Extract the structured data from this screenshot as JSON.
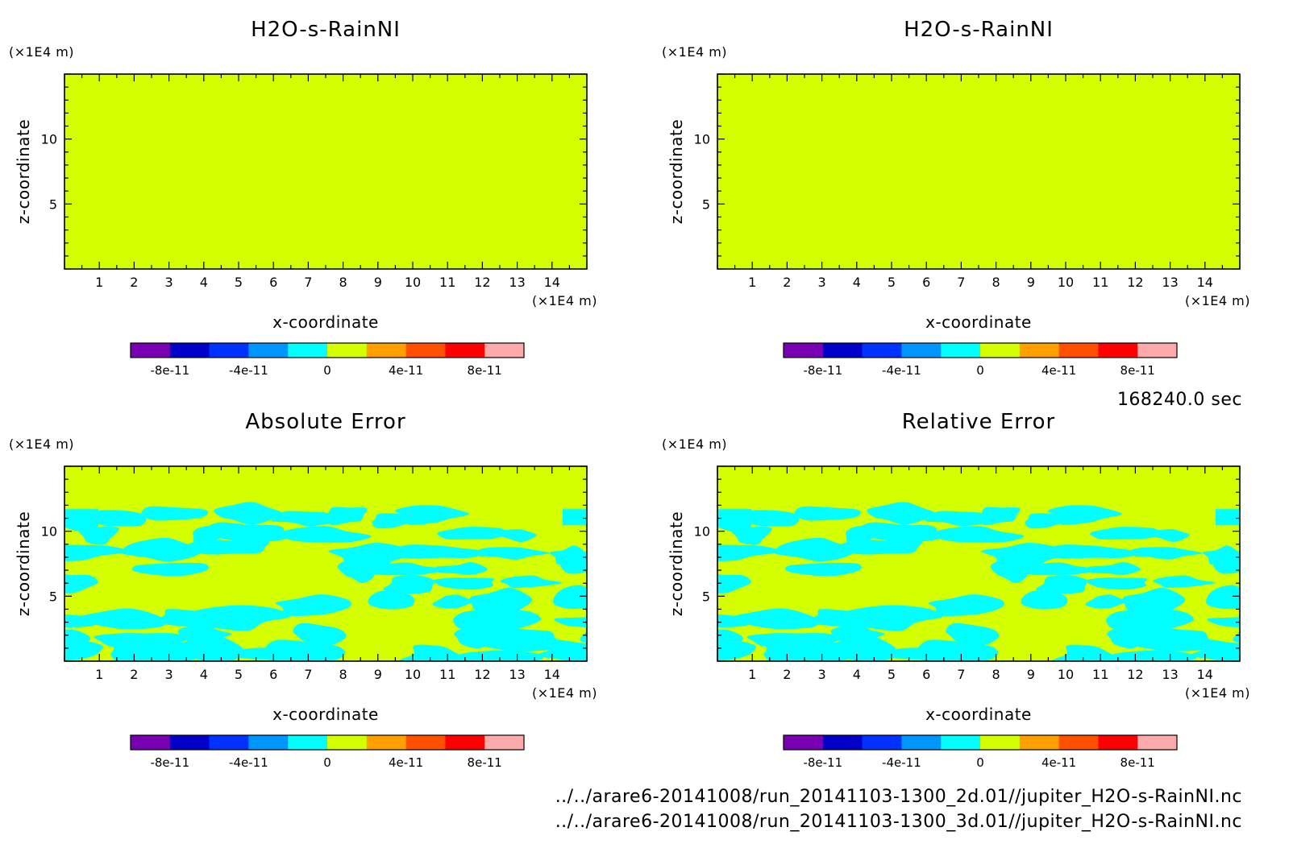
{
  "time_label": "168240.0 sec",
  "files": [
    "../../arare6-20141008/run_20141103-1300_2d.01//jupiter_H2O-s-RainNI.nc",
    "../../arare6-20141008/run_20141103-1300_3d.01//jupiter_H2O-s-RainNI.nc"
  ],
  "colors": {
    "field": "#d4ff00",
    "anomaly": "#00ffff"
  },
  "chart_data": [
    {
      "type": "heatmap",
      "title": "H2O-s-RainNI",
      "xlabel": "x-coordinate",
      "ylabel": "z-coordinate",
      "x_unit": "(×1E4 m)",
      "y_unit": "(×1E4 m)",
      "xlim": [
        0,
        15
      ],
      "ylim": [
        0,
        15
      ],
      "xticks": [
        "1",
        "2",
        "3",
        "4",
        "5",
        "6",
        "7",
        "8",
        "9",
        "10",
        "11",
        "12",
        "13",
        "14"
      ],
      "yticks": [
        "5",
        "10"
      ],
      "field": "uniform",
      "colorbar": {
        "colors": [
          "#7a00b4",
          "#0000c8",
          "#0032ff",
          "#0096ff",
          "#00ffff",
          "#d4ff00",
          "#ffa000",
          "#ff5000",
          "#ff0000",
          "#ffaaaa"
        ],
        "labels": [
          "-8e-11",
          "-4e-11",
          "0",
          "4e-11",
          "8e-11"
        ],
        "range": [
          -1e-10,
          1e-10
        ]
      }
    },
    {
      "type": "heatmap",
      "title": "H2O-s-RainNI",
      "xlabel": "x-coordinate",
      "ylabel": "z-coordinate",
      "x_unit": "(×1E4 m)",
      "y_unit": "(×1E4 m)",
      "xlim": [
        0,
        15
      ],
      "ylim": [
        0,
        15
      ],
      "xticks": [
        "1",
        "2",
        "3",
        "4",
        "5",
        "6",
        "7",
        "8",
        "9",
        "10",
        "11",
        "12",
        "13",
        "14"
      ],
      "yticks": [
        "5",
        "10"
      ],
      "field": "uniform",
      "colorbar": {
        "colors": [
          "#7a00b4",
          "#0000c8",
          "#0032ff",
          "#0096ff",
          "#00ffff",
          "#d4ff00",
          "#ffa000",
          "#ff5000",
          "#ff0000",
          "#ffaaaa"
        ],
        "labels": [
          "-8e-11",
          "-4e-11",
          "0",
          "4e-11",
          "8e-11"
        ],
        "range": [
          -1e-10,
          1e-10
        ]
      }
    },
    {
      "type": "heatmap",
      "title": "Absolute Error",
      "xlabel": "x-coordinate",
      "ylabel": "z-coordinate",
      "x_unit": "(×1E4 m)",
      "y_unit": "(×1E4 m)",
      "xlim": [
        0,
        15
      ],
      "ylim": [
        0,
        15
      ],
      "xticks": [
        "1",
        "2",
        "3",
        "4",
        "5",
        "6",
        "7",
        "8",
        "9",
        "10",
        "11",
        "12",
        "13",
        "14"
      ],
      "yticks": [
        "5",
        "10"
      ],
      "field": "patchy",
      "patch_zmax": 11.7,
      "colorbar": {
        "colors": [
          "#7a00b4",
          "#0000c8",
          "#0032ff",
          "#0096ff",
          "#00ffff",
          "#d4ff00",
          "#ffa000",
          "#ff5000",
          "#ff0000",
          "#ffaaaa"
        ],
        "labels": [
          "-8e-11",
          "-4e-11",
          "0",
          "4e-11",
          "8e-11"
        ],
        "range": [
          -1e-10,
          1e-10
        ]
      }
    },
    {
      "type": "heatmap",
      "title": "Relative Error",
      "xlabel": "x-coordinate",
      "ylabel": "z-coordinate",
      "x_unit": "(×1E4 m)",
      "y_unit": "(×1E4 m)",
      "xlim": [
        0,
        15
      ],
      "ylim": [
        0,
        15
      ],
      "xticks": [
        "1",
        "2",
        "3",
        "4",
        "5",
        "6",
        "7",
        "8",
        "9",
        "10",
        "11",
        "12",
        "13",
        "14"
      ],
      "yticks": [
        "5",
        "10"
      ],
      "field": "patchy",
      "patch_zmax": 11.7,
      "colorbar": {
        "colors": [
          "#7a00b4",
          "#0000c8",
          "#0032ff",
          "#0096ff",
          "#00ffff",
          "#d4ff00",
          "#ffa000",
          "#ff5000",
          "#ff0000",
          "#ffaaaa"
        ],
        "labels": [
          "-8e-11",
          "-4e-11",
          "0",
          "4e-11",
          "8e-11"
        ],
        "range": [
          -1e-10,
          1e-10
        ]
      }
    }
  ]
}
